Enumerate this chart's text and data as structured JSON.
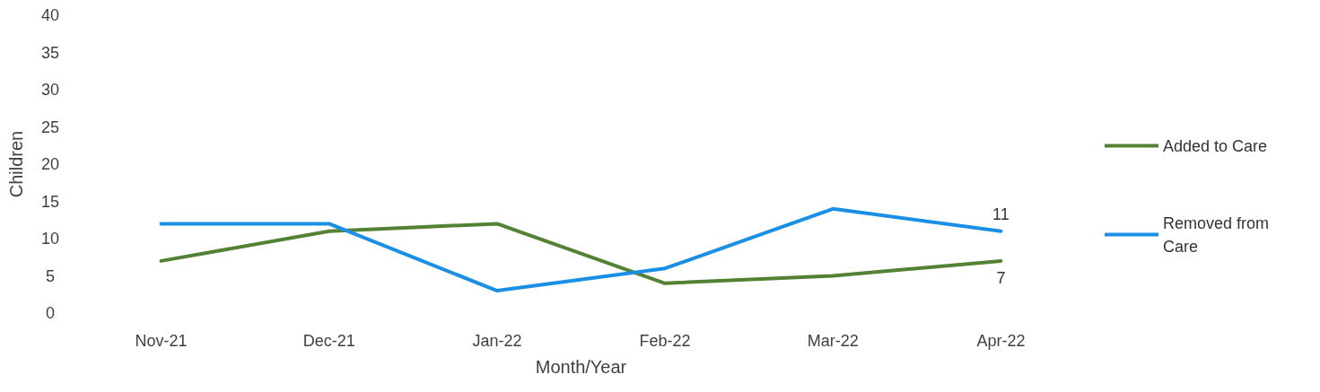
{
  "chart_data": {
    "type": "line",
    "xlabel": "Month/Year",
    "ylabel": "Children",
    "categories": [
      "Nov-21",
      "Dec-21",
      "Jan-22",
      "Feb-22",
      "Mar-22",
      "Apr-22"
    ],
    "series": [
      {
        "name": "Added to Care",
        "color": "#548235",
        "values": [
          7,
          11,
          12,
          4,
          5,
          7
        ],
        "value_labels": [
          null,
          null,
          null,
          null,
          null,
          "7"
        ]
      },
      {
        "name": "Removed from Care",
        "color": "#1a8fe3",
        "values": [
          12,
          12,
          3,
          6,
          14,
          11
        ],
        "value_labels": [
          null,
          null,
          null,
          null,
          null,
          "11"
        ]
      }
    ],
    "ylim": [
      0,
      40
    ],
    "yticks": [
      0,
      5,
      10,
      15,
      20,
      25,
      30,
      35,
      40
    ],
    "grid": false,
    "legend": "right",
    "marker": "none",
    "line_style": "solid"
  }
}
